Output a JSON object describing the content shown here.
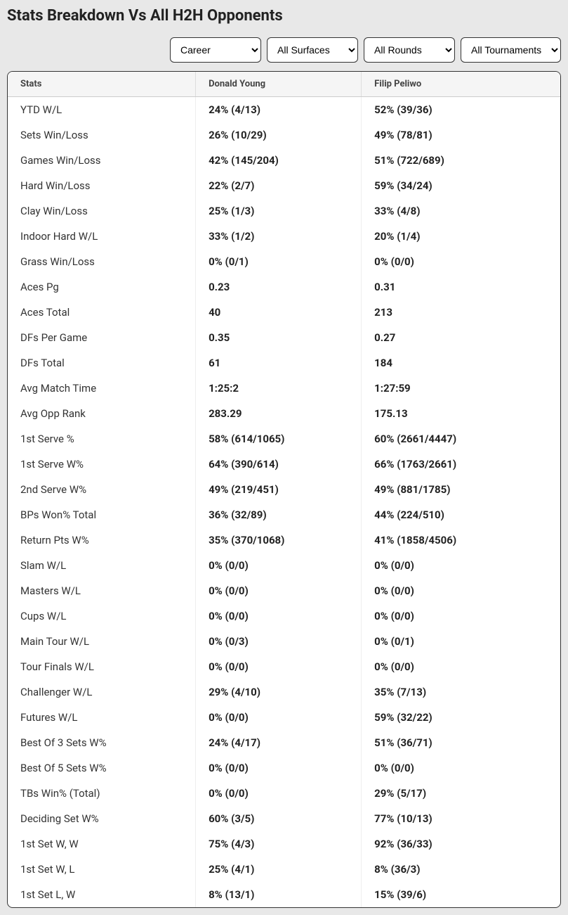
{
  "title": "Stats Breakdown Vs All H2H Opponents",
  "filters": {
    "period": {
      "selected": "Career",
      "options": [
        "Career"
      ]
    },
    "surface": {
      "selected": "All Surfaces",
      "options": [
        "All Surfaces"
      ]
    },
    "round": {
      "selected": "All Rounds",
      "options": [
        "All Rounds"
      ]
    },
    "tournament": {
      "selected": "All Tournaments",
      "options": [
        "All Tournaments"
      ]
    }
  },
  "columns": {
    "stats": "Stats",
    "player1": "Donald Young",
    "player2": "Filip Peliwo"
  },
  "rows": [
    {
      "label": "YTD W/L",
      "p1": "24% (4/13)",
      "p2": "52% (39/36)"
    },
    {
      "label": "Sets Win/Loss",
      "p1": "26% (10/29)",
      "p2": "49% (78/81)"
    },
    {
      "label": "Games Win/Loss",
      "p1": "42% (145/204)",
      "p2": "51% (722/689)"
    },
    {
      "label": "Hard Win/Loss",
      "p1": "22% (2/7)",
      "p2": "59% (34/24)"
    },
    {
      "label": "Clay Win/Loss",
      "p1": "25% (1/3)",
      "p2": "33% (4/8)"
    },
    {
      "label": "Indoor Hard W/L",
      "p1": "33% (1/2)",
      "p2": "20% (1/4)"
    },
    {
      "label": "Grass Win/Loss",
      "p1": "0% (0/1)",
      "p2": "0% (0/0)"
    },
    {
      "label": "Aces Pg",
      "p1": "0.23",
      "p2": "0.31"
    },
    {
      "label": "Aces Total",
      "p1": "40",
      "p2": "213"
    },
    {
      "label": "DFs Per Game",
      "p1": "0.35",
      "p2": "0.27"
    },
    {
      "label": "DFs Total",
      "p1": "61",
      "p2": "184"
    },
    {
      "label": "Avg Match Time",
      "p1": "1:25:2",
      "p2": "1:27:59"
    },
    {
      "label": "Avg Opp Rank",
      "p1": "283.29",
      "p2": "175.13"
    },
    {
      "label": "1st Serve %",
      "p1": "58% (614/1065)",
      "p2": "60% (2661/4447)"
    },
    {
      "label": "1st Serve W%",
      "p1": "64% (390/614)",
      "p2": "66% (1763/2661)"
    },
    {
      "label": "2nd Serve W%",
      "p1": "49% (219/451)",
      "p2": "49% (881/1785)"
    },
    {
      "label": "BPs Won% Total",
      "p1": "36% (32/89)",
      "p2": "44% (224/510)"
    },
    {
      "label": "Return Pts W%",
      "p1": "35% (370/1068)",
      "p2": "41% (1858/4506)"
    },
    {
      "label": "Slam W/L",
      "p1": "0% (0/0)",
      "p2": "0% (0/0)"
    },
    {
      "label": "Masters W/L",
      "p1": "0% (0/0)",
      "p2": "0% (0/0)"
    },
    {
      "label": "Cups W/L",
      "p1": "0% (0/0)",
      "p2": "0% (0/0)"
    },
    {
      "label": "Main Tour W/L",
      "p1": "0% (0/3)",
      "p2": "0% (0/1)"
    },
    {
      "label": "Tour Finals W/L",
      "p1": "0% (0/0)",
      "p2": "0% (0/0)"
    },
    {
      "label": "Challenger W/L",
      "p1": "29% (4/10)",
      "p2": "35% (7/13)"
    },
    {
      "label": "Futures W/L",
      "p1": "0% (0/0)",
      "p2": "59% (32/22)"
    },
    {
      "label": "Best Of 3 Sets W%",
      "p1": "24% (4/17)",
      "p2": "51% (36/71)"
    },
    {
      "label": "Best Of 5 Sets W%",
      "p1": "0% (0/0)",
      "p2": "0% (0/0)"
    },
    {
      "label": "TBs Win% (Total)",
      "p1": "0% (0/0)",
      "p2": "29% (5/17)"
    },
    {
      "label": "Deciding Set W%",
      "p1": "60% (3/5)",
      "p2": "77% (10/13)"
    },
    {
      "label": "1st Set W, W",
      "p1": "75% (4/3)",
      "p2": "92% (36/33)"
    },
    {
      "label": "1st Set W, L",
      "p1": "25% (4/1)",
      "p2": "8% (36/3)"
    },
    {
      "label": "1st Set L, W",
      "p1": "8% (13/1)",
      "p2": "15% (39/6)"
    }
  ]
}
